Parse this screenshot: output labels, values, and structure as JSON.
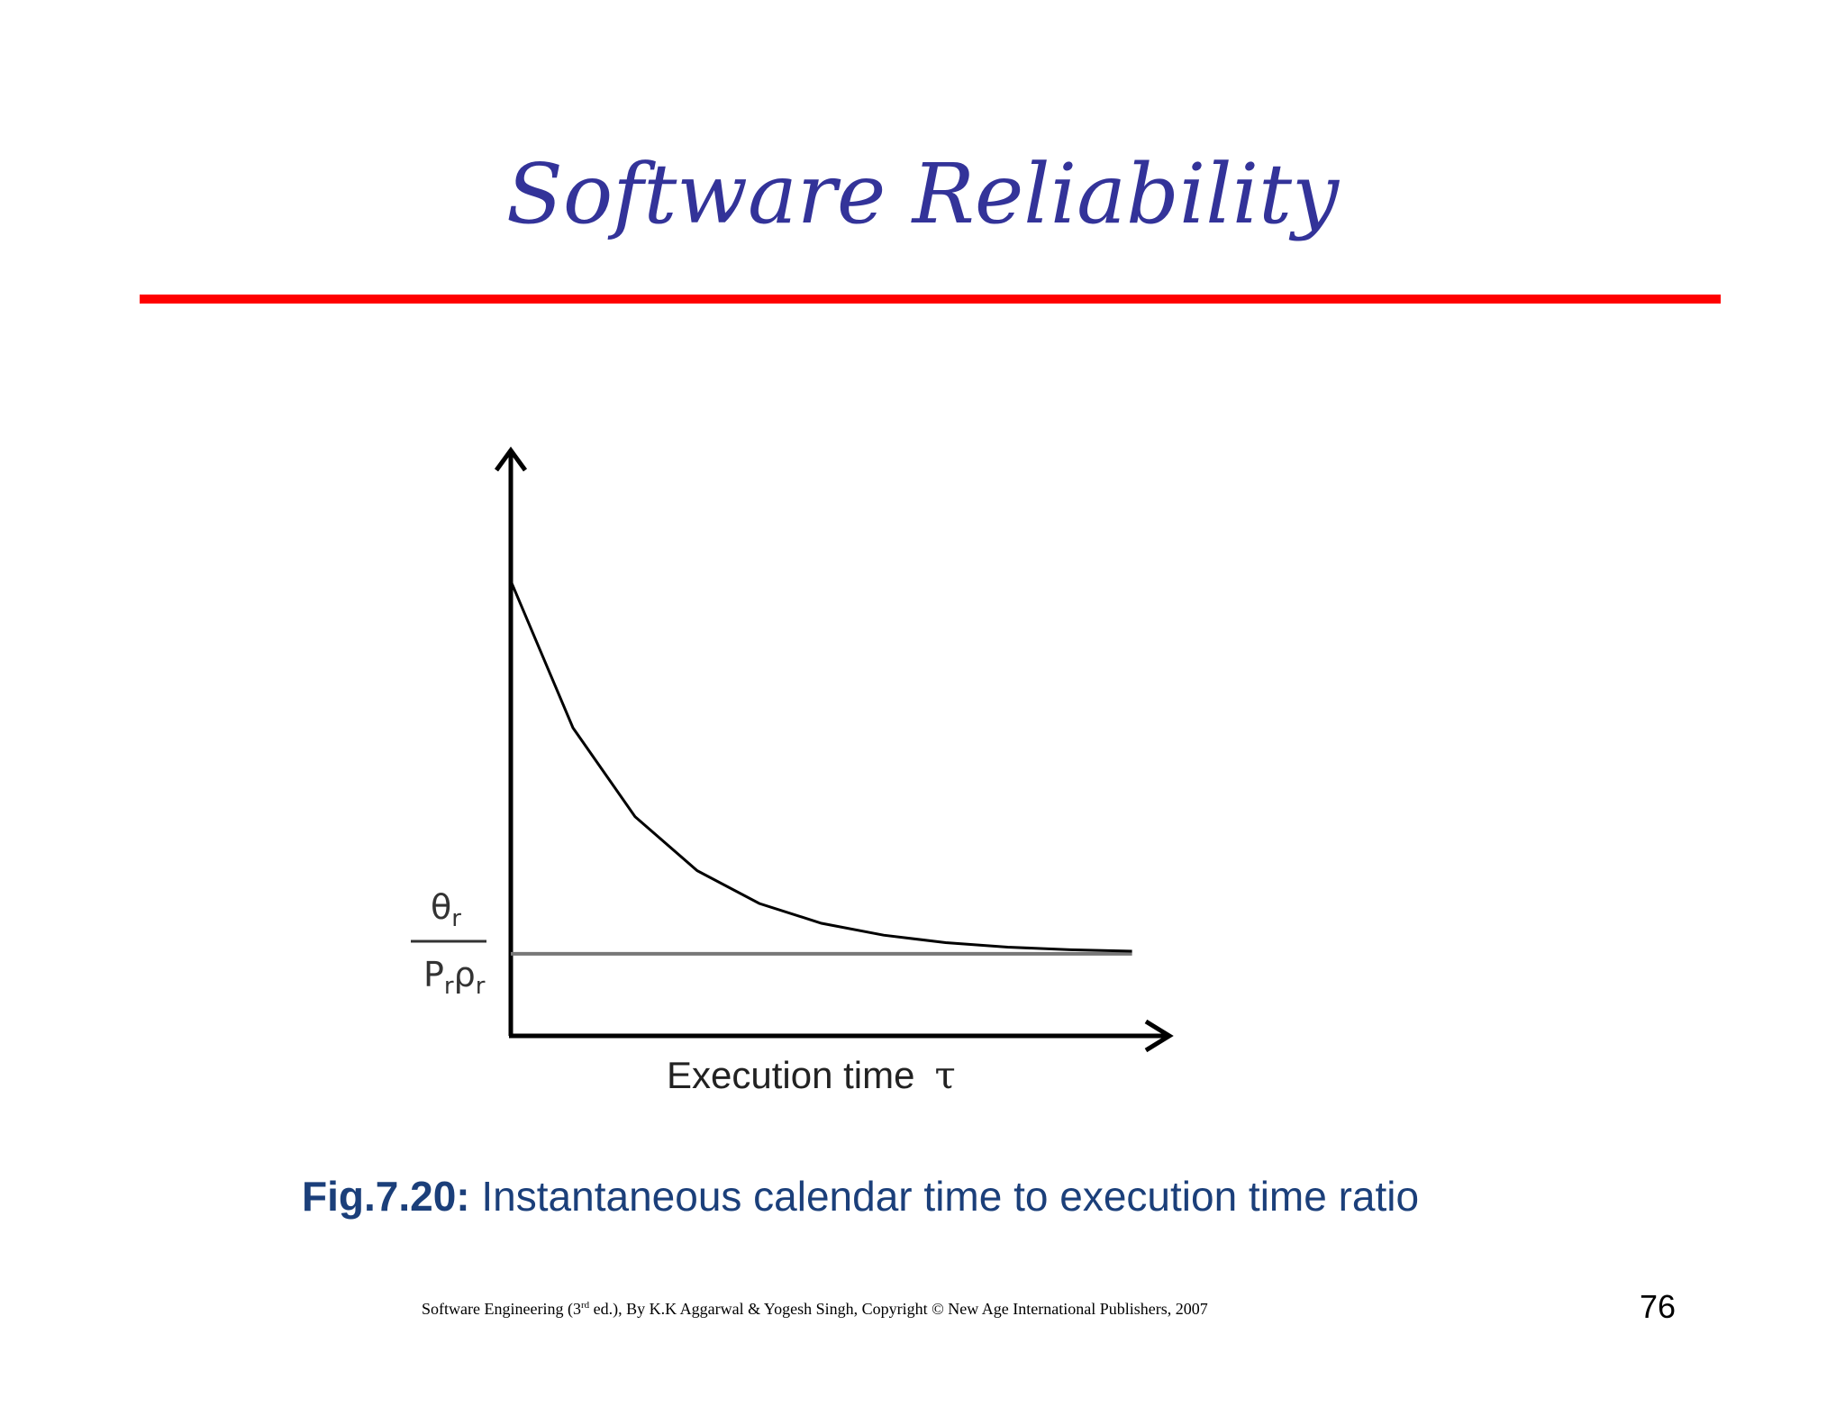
{
  "slide": {
    "title": "Software Reliability",
    "caption_label": "Fig.7.20:",
    "caption_text": "Instantaneous calendar time to execution time ratio",
    "footer_pre": "Software Engineering (3",
    "footer_sup": "rd",
    "footer_post": " ed.), By K.K Aggarwal & Yogesh Singh, Copyright © New Age International Publishers, 2007",
    "page_number": "76"
  },
  "colors": {
    "title": "#333399",
    "rule": "#ff0000",
    "caption": "#1b3f7a",
    "curve": "#000000",
    "asymptote": "#777777"
  },
  "chart_data": {
    "type": "line",
    "title": "",
    "xlabel": "Execution time",
    "xlabel_symbol": "τ",
    "ylabel": "",
    "y_asymptote_label": {
      "numerator": "θ",
      "numerator_sub": "r",
      "denominator_a": "P",
      "denominator_a_sub": "r",
      "denominator_b": "ρ",
      "denominator_b_sub": "r"
    },
    "series": [
      {
        "x": [
          0,
          0.5,
          1,
          1.5,
          2,
          2.5,
          3,
          3.5,
          4,
          4.5,
          5
        ],
        "y": [
          1.0,
          0.606,
          0.368,
          0.223,
          0.135,
          0.082,
          0.05,
          0.03,
          0.018,
          0.011,
          0.007
        ]
      }
    ],
    "asymptote_y": 0,
    "xlim": [
      0,
      5.3
    ],
    "ylim": [
      -0.22,
      1.35
    ],
    "grid": false,
    "legend": "none"
  }
}
